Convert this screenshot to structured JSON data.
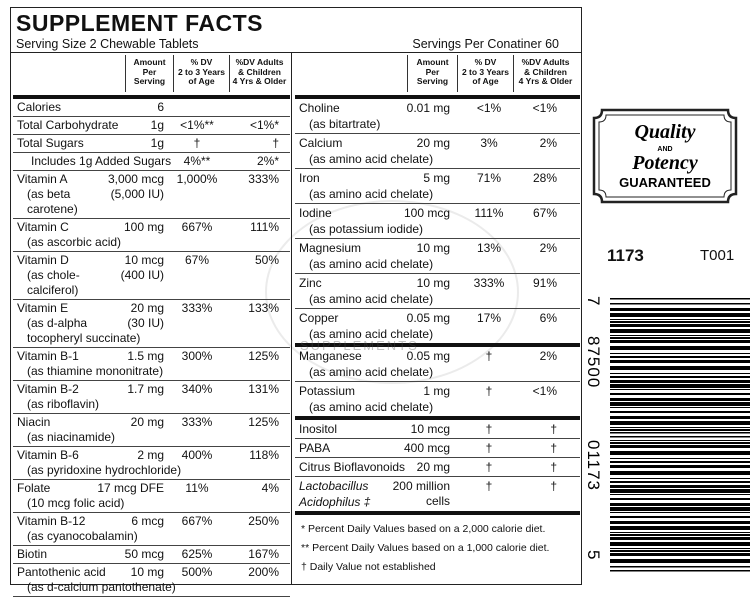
{
  "header": {
    "title": "SUPPLEMENT FACTS",
    "serving_size": "Serving Size 2 Chewable Tablets",
    "servings": "Servings Per Conatiner 60"
  },
  "columns_left": [
    [
      "Amount",
      "Per",
      "Serving"
    ],
    [
      "% DV",
      "2 to 3 Years",
      "of Age"
    ],
    [
      "%DV Adults",
      "& Children",
      "4 Yrs & Older"
    ]
  ],
  "columns_right": [
    [
      "Amount",
      "Per",
      "Serving"
    ],
    [
      "% DV",
      "2 to 3 Years",
      "of Age"
    ],
    [
      "%DV Adults",
      "& Children",
      "4 Yrs & Older"
    ]
  ],
  "left_rows": [
    {
      "name": "Calories",
      "amount": "6"
    },
    {
      "name": "Total Carbohydrate",
      "amount": "1g",
      "dv1": "<1%**",
      "dv2": "<1%*"
    },
    {
      "name": "Total Sugars",
      "amount": "1g",
      "dv1": "†",
      "dv2": "†"
    },
    {
      "name": "Includes 1g Added Sugars",
      "dv1": "4%**",
      "dv2": "2%*"
    },
    {
      "name": "Vitamin A",
      "amount": "3,000 mcg",
      "amount_note": "(5,000 IU)",
      "dv1": "1,000%",
      "dv2": "333%",
      "sub": [
        "(as beta",
        "carotene)"
      ]
    },
    {
      "name": "Vitamin C",
      "amount": "100 mg",
      "dv1": "667%",
      "dv2": "111%",
      "sub": [
        "(as ascorbic acid)"
      ]
    },
    {
      "name": "Vitamin D",
      "amount": "10 mcg",
      "amount_note": "(400 IU)",
      "dv1": "67%",
      "dv2": "50%",
      "sub": [
        "(as chole-",
        "calciferol)"
      ]
    },
    {
      "name": "Vitamin E",
      "amount": "20 mg",
      "amount_note": "(30 IU)",
      "dv1": "333%",
      "dv2": "133%",
      "sub": [
        "(as d-alpha",
        "tocopheryl succinate)"
      ]
    },
    {
      "name": "Vitamin B-1",
      "amount": "1.5 mg",
      "dv1": "300%",
      "dv2": "125%",
      "sub": [
        "(as thiamine mononitrate)"
      ]
    },
    {
      "name": "Vitamin B-2",
      "amount": "1.7 mg",
      "dv1": "340%",
      "dv2": "131%",
      "sub": [
        "(as riboflavin)"
      ]
    },
    {
      "name": "Niacin",
      "amount": "20 mg",
      "dv1": "333%",
      "dv2": "125%",
      "sub": [
        "(as niacinamide)"
      ]
    },
    {
      "name": "Vitamin B-6",
      "amount": "2 mg",
      "dv1": "400%",
      "dv2": "118%",
      "sub": [
        "(as pyridoxine hydrochloride)"
      ]
    },
    {
      "name": "Folate",
      "amount": "17 mcg DFE",
      "dv1": "11%",
      "dv2": "4%",
      "sub": [
        "(10 mcg folic acid)"
      ]
    },
    {
      "name": "Vitamin B-12",
      "amount": "6 mcg",
      "dv1": "667%",
      "dv2": "250%",
      "sub": [
        "(as cyanocobalamin)"
      ]
    },
    {
      "name": "Biotin",
      "amount": "50 mcg",
      "dv1": "625%",
      "dv2": "167%"
    },
    {
      "name": "Pantothenic acid",
      "amount": "10 mg",
      "dv1": "500%",
      "dv2": "200%",
      "sub": [
        "(as d-calcium pantothenate)"
      ]
    }
  ],
  "right_rows": [
    {
      "name": "Choline",
      "amount": "0.01 mg",
      "dv1": "<1%",
      "dv2": "<1%",
      "sub": [
        "(as bitartrate)"
      ]
    },
    {
      "name": "Calcium",
      "amount": "20 mg",
      "dv1": "3%",
      "dv2": "2%",
      "sub": [
        "(as amino acid chelate)"
      ]
    },
    {
      "name": "Iron",
      "amount": "5 mg",
      "dv1": "71%",
      "dv2": "28%",
      "sub": [
        "(as amino acid chelate)"
      ]
    },
    {
      "name": "Iodine",
      "amount": "100 mcg",
      "dv1": "111%",
      "dv2": "67%",
      "sub": [
        "(as potassium iodide)"
      ]
    },
    {
      "name": "Magnesium",
      "amount": "10 mg",
      "dv1": "13%",
      "dv2": "2%",
      "sub": [
        "(as amino acid chelate)"
      ]
    },
    {
      "name": "Zinc",
      "amount": "10 mg",
      "dv1": "333%",
      "dv2": "91%",
      "sub": [
        "(as amino acid chelate)"
      ]
    },
    {
      "name": "Copper",
      "amount": "0.05 mg",
      "dv1": "17%",
      "dv2": "6%",
      "sub": [
        "(as amino acid chelate)"
      ]
    },
    {
      "name": "Manganese",
      "amount": "0.05 mg",
      "dv1": "†",
      "dv2": "2%",
      "sub": [
        "(as amino acid chelate)"
      ]
    },
    {
      "name": "Potassium",
      "amount": "1 mg",
      "dv1": "†",
      "dv2": "<1%",
      "sub": [
        "(as amino acid chelate)"
      ]
    },
    {
      "name": "Inositol",
      "amount": "10 mcg",
      "dv1": "†",
      "dv2": "†"
    },
    {
      "name": "PABA",
      "amount": "400 mcg",
      "dv1": "†",
      "dv2": "†"
    },
    {
      "name": "Citrus Bioflavonoids",
      "amount": "20 mg",
      "dv1": "†",
      "dv2": "†"
    },
    {
      "name": "Lactobacillus",
      "amount": "200 million",
      "amount_note": "cells",
      "dv1": "†",
      "dv2": "†",
      "sub": [
        "Acidophilus ‡"
      ]
    }
  ],
  "footnotes": [
    "* Percent Daily Values based on a 2,000 calorie diet.",
    "** Percent Daily Values based on a 1,000 calorie diet.",
    "† Daily Value not established"
  ],
  "watermark": "SUPPLEMENTS",
  "badge": {
    "line1": "Quality",
    "line2": "AND",
    "line3": "Potency",
    "line4": "GUARANTEED"
  },
  "lot": "1173",
  "code": "T001",
  "barcode": {
    "first": "7",
    "left": "87500",
    "right": "01173",
    "last": "5"
  }
}
